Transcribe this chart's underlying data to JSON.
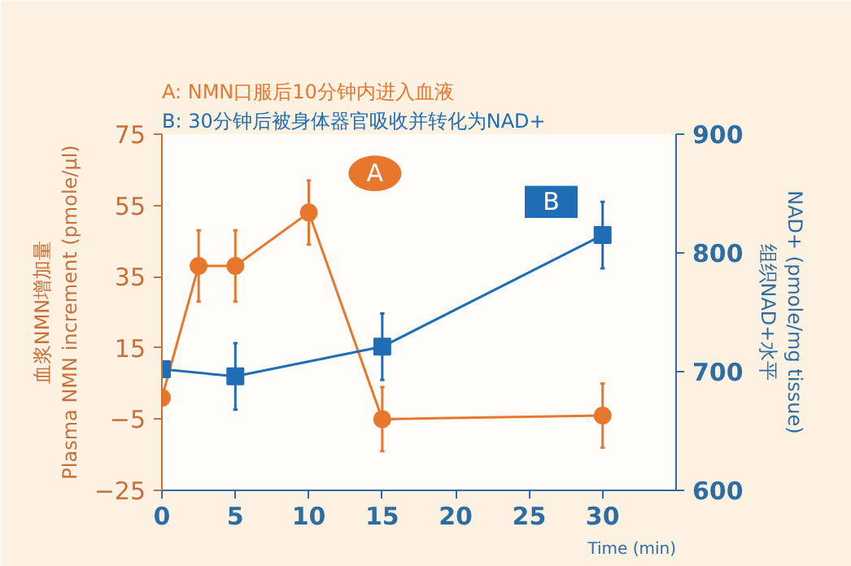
{
  "chart_data": {
    "type": "line",
    "xlabel": "Time (min)",
    "ylabel": "血浆NMN增加量\nPlasma NMN increment (pmole/µl)",
    "y2label": "NAD+ (pmole/mg tissue)\n组织NAD+水平",
    "xlim": [
      0,
      35
    ],
    "xticks": [
      0,
      5,
      10,
      15,
      20,
      25,
      30
    ],
    "ylim": [
      -25,
      75
    ],
    "yticks": [
      -25,
      -5,
      15,
      35,
      55,
      75
    ],
    "y2lim": [
      600,
      900
    ],
    "y2ticks": [
      600,
      700,
      800,
      900
    ],
    "grid": false,
    "series": [
      {
        "color": "#e8772e",
        "marker": "circle",
        "x": [
          0,
          2.5,
          5,
          10,
          15,
          30
        ],
        "values": [
          1,
          38,
          38,
          53,
          -5,
          -4
        ],
        "errors": [
          null,
          10,
          10,
          9,
          9,
          9
        ]
      },
      {
        "color": "#1f6db5",
        "marker": "square",
        "axis": "y2",
        "x": [
          0,
          5,
          15,
          30
        ],
        "values": [
          702,
          696,
          721,
          815
        ],
        "errors": [
          null,
          28,
          28,
          28
        ]
      }
    ],
    "annotations": [
      "A: NMN口服后10分钟内进入血液",
      "B: 30分钟后被身体器官吸收并转化为NAD+",
      {
        "text": "A",
        "x": 14.5,
        "y": 64
      },
      {
        "text": "B",
        "x": 26.5,
        "y": 56
      }
    ]
  }
}
